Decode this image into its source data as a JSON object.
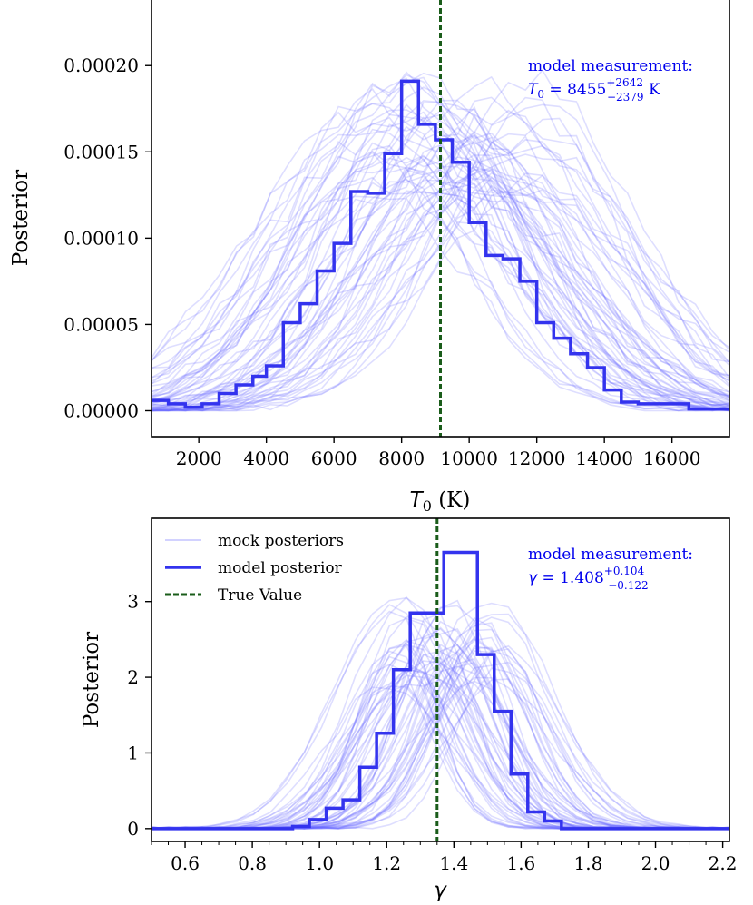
{
  "chart_data": [
    {
      "type": "line",
      "panel": "top",
      "xlabel_symbol": "T",
      "xlabel_sub": "0",
      "xlabel_unit": " (K)",
      "ylabel": "Posterior",
      "xlim": [
        600,
        17700
      ],
      "ylim": [
        -1.5e-05,
        0.000238
      ],
      "xticks": [
        2000,
        4000,
        6000,
        8000,
        10000,
        12000,
        14000,
        16000
      ],
      "xtick_labels": [
        "2000",
        "4000",
        "6000",
        "8000",
        "10000",
        "12000",
        "14000",
        "16000"
      ],
      "yticks": [
        0,
        5e-05,
        0.0001,
        0.00015,
        0.0002
      ],
      "ytick_labels": [
        "0.00000",
        "0.00005",
        "0.00010",
        "0.00015",
        "0.00020"
      ],
      "true_value": 9150,
      "model_posterior": {
        "edges": [
          600,
          1100,
          1600,
          2100,
          2600,
          3100,
          3600,
          4000,
          4500,
          5000,
          5500,
          6000,
          6500,
          7000,
          7500,
          8000,
          8500,
          9000,
          9500,
          10000,
          10500,
          11000,
          11500,
          12000,
          12500,
          13000,
          13500,
          14000,
          14500,
          15000,
          15500,
          16500,
          17700
        ],
        "values": [
          6e-06,
          4e-06,
          2e-06,
          4e-06,
          1e-05,
          1.5e-05,
          2e-05,
          2.6e-05,
          5.1e-05,
          6.2e-05,
          8.1e-05,
          9.7e-05,
          0.000127,
          0.000126,
          0.000149,
          0.000191,
          0.000166,
          0.000157,
          0.000144,
          0.000109,
          9e-05,
          8.8e-05,
          7.5e-05,
          5.1e-05,
          4.2e-05,
          3.3e-05,
          2.5e-05,
          1.2e-05,
          5e-06,
          4e-06,
          4e-06,
          1e-06
        ]
      },
      "mock": {
        "count": 60,
        "center_range": [
          7000,
          12000
        ],
        "sigma_range": [
          2400,
          3900
        ],
        "peak_range": [
          0.000125,
          0.000195
        ],
        "noise": 1.8e-05
      },
      "annotation_line1": "model measurement:",
      "annotation_sym": "T",
      "annotation_sub": "0",
      "annotation_eq": " = 8455",
      "annotation_sup": "+2642",
      "annotation_low": "−2379",
      "annotation_unit": " K"
    },
    {
      "type": "line",
      "panel": "bottom",
      "xlabel": "γ",
      "ylabel": "Posterior",
      "xlim": [
        0.5,
        2.22
      ],
      "ylim": [
        -0.17,
        4.1
      ],
      "xticks": [
        0.6,
        0.8,
        1.0,
        1.2,
        1.4,
        1.6,
        1.8,
        2.0,
        2.2
      ],
      "xtick_labels": [
        "0.6",
        "0.8",
        "1.0",
        "1.2",
        "1.4",
        "1.6",
        "1.8",
        "2.0",
        "2.2"
      ],
      "yticks": [
        0,
        1,
        2,
        3
      ],
      "ytick_labels": [
        "0",
        "1",
        "2",
        "3"
      ],
      "true_value": 1.35,
      "model_posterior": {
        "edges": [
          0.5,
          0.92,
          0.97,
          1.02,
          1.07,
          1.12,
          1.17,
          1.22,
          1.27,
          1.32,
          1.37,
          1.42,
          1.47,
          1.52,
          1.57,
          1.62,
          1.67,
          1.72,
          2.22
        ],
        "values": [
          0,
          0.03,
          0.12,
          0.27,
          0.38,
          0.81,
          1.26,
          2.1,
          2.85,
          2.85,
          3.65,
          3.65,
          2.3,
          1.55,
          0.72,
          0.22,
          0.1,
          0
        ]
      },
      "mock": {
        "count": 60,
        "center_range": [
          1.2,
          1.55
        ],
        "sigma_range": [
          0.1,
          0.2
        ],
        "peak_range": [
          1.9,
          3.1
        ],
        "noise": 0.18
      },
      "annotation_line1": "model measurement:",
      "annotation_sym": "γ",
      "annotation_eq": " = 1.408",
      "annotation_sup": "+0.104",
      "annotation_low": "−0.122",
      "legend": {
        "placement": "upper-left",
        "entries": [
          "mock posteriors",
          "model posterior",
          "True Value"
        ]
      }
    }
  ],
  "colors": {
    "mock": "#6b6bff",
    "model": "#3333ee",
    "true_value": "#1a5c1a",
    "annotation": "#0000ee",
    "frame": "#000000"
  }
}
